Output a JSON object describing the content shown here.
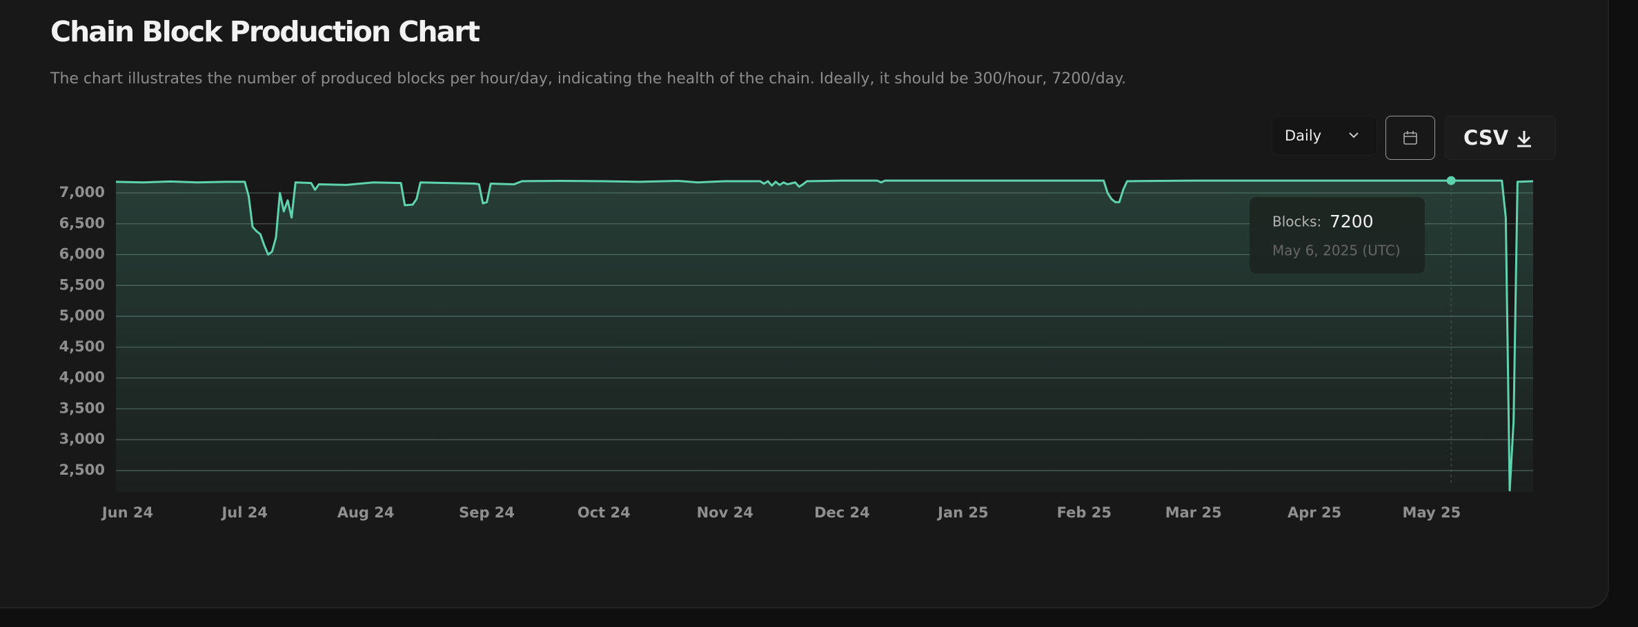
{
  "header": {
    "title": "Chain Block Production Chart",
    "subtitle": "The chart illustrates the number of produced blocks per hour/day, indicating the health of the chain. Ideally, it should be 300/hour, 7200/day."
  },
  "controls": {
    "interval": "Daily",
    "export": "CSV"
  },
  "chart_data": {
    "type": "area",
    "x": [
      "2024-05-29",
      "2024-06-05",
      "2024-06-12",
      "2024-06-19",
      "2024-06-26",
      "2024-07-01",
      "2024-07-02",
      "2024-07-03",
      "2024-07-04",
      "2024-07-05",
      "2024-07-06",
      "2024-07-07",
      "2024-07-08",
      "2024-07-09",
      "2024-07-10",
      "2024-07-11",
      "2024-07-12",
      "2024-07-13",
      "2024-07-14",
      "2024-07-18",
      "2024-07-19",
      "2024-07-20",
      "2024-07-27",
      "2024-08-03",
      "2024-08-10",
      "2024-08-11",
      "2024-08-13",
      "2024-08-14",
      "2024-08-15",
      "2024-08-22",
      "2024-08-29",
      "2024-08-30",
      "2024-08-31",
      "2024-09-01",
      "2024-09-02",
      "2024-09-08",
      "2024-09-10",
      "2024-09-20",
      "2024-10-01",
      "2024-10-10",
      "2024-10-20",
      "2024-10-25",
      "2024-11-01",
      "2024-11-10",
      "2024-11-11",
      "2024-11-12",
      "2024-11-13",
      "2024-11-14",
      "2024-11-15",
      "2024-11-16",
      "2024-11-17",
      "2024-11-19",
      "2024-11-20",
      "2024-11-21",
      "2024-11-22",
      "2024-12-01",
      "2024-12-10",
      "2024-12-11",
      "2024-12-12",
      "2025-01-01",
      "2025-02-06",
      "2025-02-07",
      "2025-02-08",
      "2025-02-09",
      "2025-02-10",
      "2025-02-11",
      "2025-02-12",
      "2025-03-01",
      "2025-05-06",
      "2025-05-19",
      "2025-05-20",
      "2025-05-21",
      "2025-05-22",
      "2025-05-23",
      "2025-05-27"
    ],
    "series": [
      {
        "color": "#5fd3ae",
        "values": [
          7180,
          7170,
          7185,
          7170,
          7180,
          7180,
          6950,
          6450,
          6380,
          6330,
          6150,
          6000,
          6050,
          6280,
          7000,
          6700,
          6880,
          6600,
          7170,
          7160,
          7050,
          7140,
          7130,
          7170,
          7160,
          6800,
          6810,
          6900,
          7170,
          7160,
          7150,
          7140,
          6830,
          6850,
          7150,
          7140,
          7190,
          7195,
          7190,
          7180,
          7195,
          7170,
          7190,
          7190,
          7150,
          7190,
          7120,
          7180,
          7130,
          7170,
          7140,
          7170,
          7100,
          7140,
          7190,
          7200,
          7200,
          7170,
          7200,
          7200,
          7200,
          7000,
          6900,
          6850,
          6850,
          7050,
          7190,
          7200,
          7200,
          7200,
          6600,
          2180,
          3300,
          7180,
          7190
        ]
      }
    ],
    "xlim": [
      "2024-05-29",
      "2025-05-27"
    ],
    "xticks": [
      {
        "value": "2024-06-01",
        "label": "Jun 24"
      },
      {
        "value": "2024-07-01",
        "label": "Jul 24"
      },
      {
        "value": "2024-08-01",
        "label": "Aug 24"
      },
      {
        "value": "2024-09-01",
        "label": "Sep 24"
      },
      {
        "value": "2024-10-01",
        "label": "Oct 24"
      },
      {
        "value": "2024-11-01",
        "label": "Nov 24"
      },
      {
        "value": "2024-12-01",
        "label": "Dec 24"
      },
      {
        "value": "2025-01-01",
        "label": "Jan 25"
      },
      {
        "value": "2025-02-01",
        "label": "Feb 25"
      },
      {
        "value": "2025-03-01",
        "label": "Mar 25"
      },
      {
        "value": "2025-04-01",
        "label": "Apr 25"
      },
      {
        "value": "2025-05-01",
        "label": "May 25"
      }
    ],
    "ylim": [
      2150,
      7250
    ],
    "yticks": [
      {
        "value": 2500,
        "label": "2,500"
      },
      {
        "value": 3000,
        "label": "3,000"
      },
      {
        "value": 3500,
        "label": "3,500"
      },
      {
        "value": 4000,
        "label": "4,000"
      },
      {
        "value": 4500,
        "label": "4,500"
      },
      {
        "value": 5000,
        "label": "5,000"
      },
      {
        "value": 5500,
        "label": "5,500"
      },
      {
        "value": 6000,
        "label": "6,000"
      },
      {
        "value": 6500,
        "label": "6,500"
      },
      {
        "value": 7000,
        "label": "7,000"
      }
    ],
    "grid": true,
    "tooltip": {
      "label": "Blocks:",
      "value": 7200,
      "x": "2025-05-06",
      "date_label": "May 6, 2025 (UTC)"
    }
  }
}
